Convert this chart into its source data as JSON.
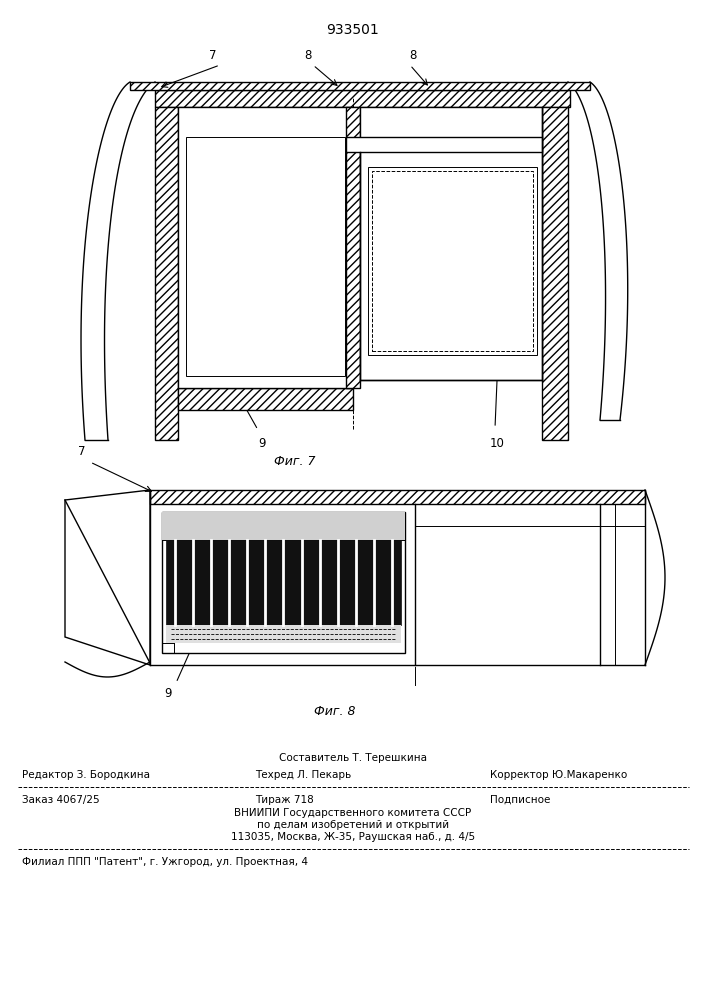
{
  "patent_number": "933501",
  "fig7_label": "Фиг. 7",
  "fig8_label": "Фиг. 8",
  "bg_color": "#ffffff",
  "line_color": "#000000",
  "text_color": "#000000",
  "footer_line1_center": "Составитель Т. Терешкина",
  "footer_line2_left": "Редактор З. Бородкина",
  "footer_line2_center": "Техред Л. Пекарь",
  "footer_line2_right": "Корректор Ю.Макаренко",
  "footer_line3_left": "Заказ 4067/25",
  "footer_line3_center": "Тираж 718",
  "footer_line3_right": "Подписное",
  "footer_line4": "ВНИИПИ Государственного комитета СССР",
  "footer_line5": "по делам изобретений и открытий",
  "footer_line6": "113035, Москва, Ж-35, Раушская наб., д. 4/5",
  "footer_line7": "Филиал ППП \"Патент\", г. Ужгород, ул. Проектная, 4"
}
